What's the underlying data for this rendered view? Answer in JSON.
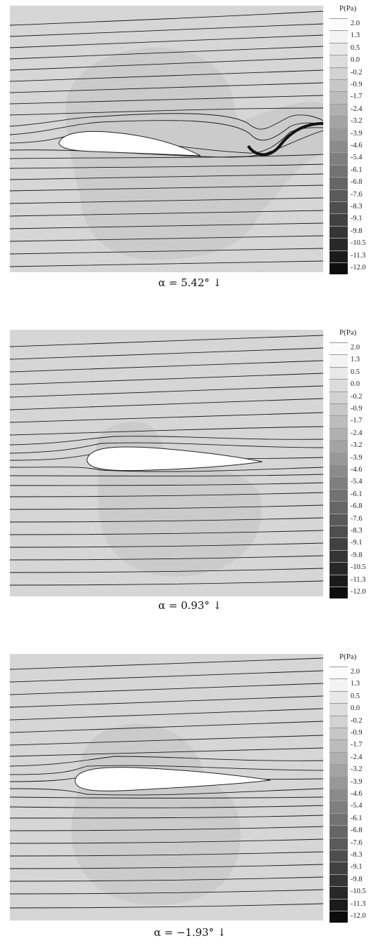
{
  "legend": {
    "title": "P(Pa)",
    "ticks": [
      "2.0",
      "1.3",
      "0.5",
      "0.0",
      "-0.2",
      "-0.9",
      "-1.7",
      "-2.4",
      "-3.2",
      "-3.9",
      "-4.6",
      "-5.4",
      "-6.1",
      "-6.8",
      "-7.6",
      "-8.3",
      "-9.1",
      "-9.8",
      "-10.5",
      "-11.3",
      "-12.0"
    ],
    "colors": [
      "#fbfbfb",
      "#f3f3f3",
      "#e8e8e8",
      "#dcdcdc",
      "#d2d2d2",
      "#c7c7c7",
      "#bcbcbc",
      "#b0b0b0",
      "#a4a4a4",
      "#989898",
      "#8b8b8b",
      "#7f7f7f",
      "#727272",
      "#666666",
      "#5a5a5a",
      "#4e4e4e",
      "#414141",
      "#353535",
      "#282828",
      "#1b1b1b",
      "#0c0c0c"
    ]
  },
  "panels": [
    {
      "caption": "α = 5.42° ↓"
    },
    {
      "caption": "α = 0.93° ↓"
    },
    {
      "caption": "α = −1.93° ↓"
    }
  ],
  "colors": {
    "background": "#d6d6d6",
    "low_pressure_region": "#cbcbcb",
    "streamline": "#1a1a1a",
    "airfoil": "#ffffff"
  }
}
